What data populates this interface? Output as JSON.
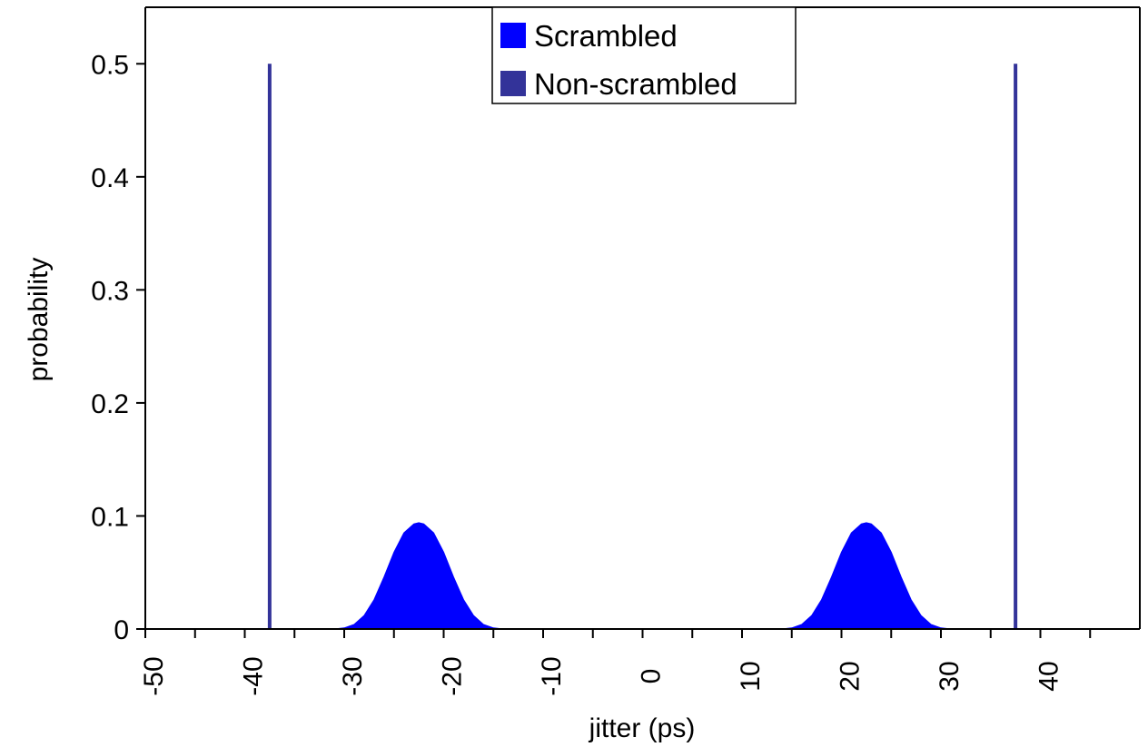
{
  "chart_data": {
    "type": "area",
    "title": "",
    "xlabel": "jitter (ps)",
    "ylabel": "probability",
    "xlim": [
      -50,
      50
    ],
    "ylim": [
      0,
      0.55
    ],
    "x_ticks": [
      -50,
      -40,
      -30,
      -20,
      -10,
      0,
      10,
      20,
      30,
      40
    ],
    "x_tick_labels": [
      "-50",
      "-40",
      "-30",
      "-20",
      "-10",
      "0",
      "10",
      "20",
      "30",
      "40"
    ],
    "y_ticks": [
      0,
      0.1,
      0.2,
      0.3,
      0.4,
      0.5
    ],
    "y_tick_labels": [
      "0",
      "0.1",
      "0.2",
      "0.3",
      "0.4",
      "0.5"
    ],
    "grid": false,
    "legend_position": "top-center",
    "series": [
      {
        "name": "Scrambled",
        "style": "filled-area",
        "color": "#0000ff",
        "x": [
          -31,
          -30,
          -29,
          -28,
          -27,
          -26,
          -25,
          -24,
          -23,
          -22.5,
          -22,
          -21,
          -20,
          -19,
          -18,
          -17,
          -16,
          -15,
          -14,
          14,
          15,
          16,
          17,
          18,
          19,
          20,
          21,
          22,
          22.5,
          23,
          24,
          25,
          26,
          27,
          28,
          29,
          30,
          31
        ],
        "values": [
          0.0,
          0.001,
          0.004,
          0.012,
          0.026,
          0.046,
          0.068,
          0.085,
          0.093,
          0.094,
          0.093,
          0.085,
          0.068,
          0.046,
          0.026,
          0.012,
          0.004,
          0.001,
          0.0,
          0.0,
          0.001,
          0.004,
          0.012,
          0.026,
          0.046,
          0.068,
          0.085,
          0.093,
          0.094,
          0.093,
          0.085,
          0.068,
          0.046,
          0.026,
          0.012,
          0.004,
          0.001,
          0.0
        ]
      },
      {
        "name": "Non-scrambled",
        "style": "impulse",
        "color": "#333399",
        "x": [
          -37.5,
          37.5
        ],
        "values": [
          0.5,
          0.5
        ]
      }
    ]
  }
}
